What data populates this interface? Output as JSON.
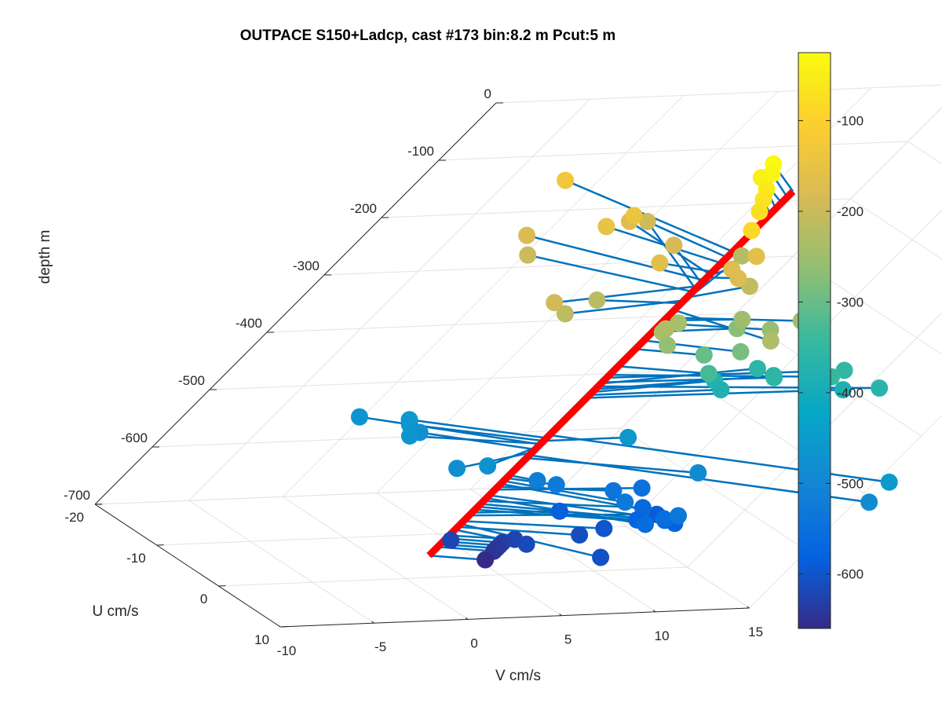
{
  "chart_data": {
    "type": "scatter",
    "title": "OUTPACE S150+Ladcp, cast #173 bin:8.2 m  Pcut:5 m",
    "xlabel": "V cm/s",
    "ylabel": "U cm/s",
    "zlabel": "depth m",
    "xlim": [
      -10,
      15
    ],
    "ylim": [
      -20,
      10
    ],
    "zlim": [
      -700,
      0
    ],
    "x_ticks": [
      "-10",
      "-5",
      "0",
      "5",
      "10",
      "15"
    ],
    "y_ticks": [
      "-20",
      "-10",
      "0",
      "10"
    ],
    "z_ticks": [
      "0",
      "-100",
      "-200",
      "-300",
      "-400",
      "-500",
      "-600",
      "-700"
    ],
    "colorbar": {
      "ticks": [
        "-100",
        "-200",
        "-300",
        "-400",
        "-500",
        "-600"
      ],
      "range": [
        -660,
        -25
      ]
    },
    "grid": true,
    "reference_profile_color": "#ff0000",
    "vector_color": "#0072bd",
    "points": [
      {
        "depth": -25,
        "v": 1.1,
        "u": -6.5
      },
      {
        "depth": -35,
        "v": 1.0,
        "u": -5.5
      },
      {
        "depth": -45,
        "v": 0.9,
        "u": -6.0
      },
      {
        "depth": -55,
        "v": 1.0,
        "u": -4.5
      },
      {
        "depth": -65,
        "v": 0.8,
        "u": -3.5
      },
      {
        "depth": -75,
        "v": 0.4,
        "u": -2.0
      },
      {
        "depth": -85,
        "v": -0.7,
        "u": 1.0
      },
      {
        "depth": -130,
        "v": -3.0,
        "u": -18.0
      },
      {
        "depth": -140,
        "v": -1.5,
        "u": -10.5
      },
      {
        "depth": -150,
        "v": -3.0,
        "u": -9.5
      },
      {
        "depth": -160,
        "v": 3.0,
        "u": -2.5
      },
      {
        "depth": -165,
        "v": -2.0,
        "u": -2.5
      },
      {
        "depth": -170,
        "v": 1.5,
        "u": -1.0
      },
      {
        "depth": -170,
        "v": 0.0,
        "u": -13.0
      },
      {
        "depth": -175,
        "v": 1.5,
        "u": 0.5
      },
      {
        "depth": -180,
        "v": -5.5,
        "u": -12.0
      },
      {
        "depth": -185,
        "v": 1.5,
        "u": -9.0
      },
      {
        "depth": -190,
        "v": -8.5,
        "u": 2.5
      },
      {
        "depth": -195,
        "v": 2.7,
        "u": -16.0
      },
      {
        "depth": -200,
        "v": -5.5,
        "u": -10.0
      },
      {
        "depth": -210,
        "v": 4.0,
        "u": -2.0
      },
      {
        "depth": -215,
        "v": -7.0,
        "u": 2.0
      },
      {
        "depth": -220,
        "v": -4.0,
        "u": -1.5
      },
      {
        "depth": -225,
        "v": 7.0,
        "u": -11.0
      },
      {
        "depth": -230,
        "v": -2.0,
        "u": 4.5
      },
      {
        "depth": -232,
        "v": 2.5,
        "u": 8.0
      },
      {
        "depth": -236,
        "v": -2.0,
        "u": 4.5
      },
      {
        "depth": -240,
        "v": -0.2,
        "u": 2.0
      },
      {
        "depth": -245,
        "v": 6.5,
        "u": 2.0
      },
      {
        "depth": -250,
        "v": 4.0,
        "u": 0.5
      },
      {
        "depth": -255,
        "v": 5.0,
        "u": 2.5
      },
      {
        "depth": -260,
        "v": -1.0,
        "u": 4.5
      },
      {
        "depth": -270,
        "v": 4.5,
        "u": 0.0
      },
      {
        "depth": -285,
        "v": 4.0,
        "u": 3.5
      },
      {
        "depth": -300,
        "v": 3.0,
        "u": 2.0
      },
      {
        "depth": -330,
        "v": 4.0,
        "u": 2.5
      },
      {
        "depth": -345,
        "v": 11.0,
        "u": 2.5
      },
      {
        "depth": -350,
        "v": 12.5,
        "u": 0.5
      },
      {
        "depth": -358,
        "v": 9.0,
        "u": 0.5
      },
      {
        "depth": -360,
        "v": 9.0,
        "u": -2.0
      },
      {
        "depth": -365,
        "v": 14.0,
        "u": 3.0
      },
      {
        "depth": -370,
        "v": 10.0,
        "u": -1.5
      },
      {
        "depth": -375,
        "v": 7.0,
        "u": -1.5
      },
      {
        "depth": -380,
        "v": 7.0,
        "u": 0.0
      },
      {
        "depth": -385,
        "v": 13.5,
        "u": 0.5
      },
      {
        "depth": -450,
        "v": 13.5,
        "u": 14.0
      },
      {
        "depth": -455,
        "v": -5.5,
        "u": -5.5
      },
      {
        "depth": -460,
        "v": 4.5,
        "u": 0.0
      },
      {
        "depth": -460,
        "v": -5.5,
        "u": -5.0
      },
      {
        "depth": -465,
        "v": -6.0,
        "u": -3.0
      },
      {
        "depth": -466,
        "v": -7.0,
        "u": -8.0
      },
      {
        "depth": -470,
        "v": -4.0,
        "u": 4.0
      },
      {
        "depth": -475,
        "v": -4.5,
        "u": -5.0
      },
      {
        "depth": -480,
        "v": -5.0,
        "u": 3.0
      },
      {
        "depth": -485,
        "v": 13.5,
        "u": 14.0
      },
      {
        "depth": -490,
        "v": 7.5,
        "u": 5.0
      },
      {
        "depth": -520,
        "v": 1.0,
        "u": 1.5
      },
      {
        "depth": -525,
        "v": 2.0,
        "u": 2.0
      },
      {
        "depth": -530,
        "v": 4.5,
        "u": 6.0
      },
      {
        "depth": -535,
        "v": 6.5,
        "u": 9.0
      },
      {
        "depth": -540,
        "v": 5.5,
        "u": 2.0
      },
      {
        "depth": -545,
        "v": 7.5,
        "u": 1.0
      },
      {
        "depth": -555,
        "v": 7.0,
        "u": 7.0
      },
      {
        "depth": -560,
        "v": 6.0,
        "u": 7.5
      },
      {
        "depth": -565,
        "v": 7.5,
        "u": 3.0
      },
      {
        "depth": -570,
        "v": 8.0,
        "u": 5.5
      },
      {
        "depth": -575,
        "v": 7.0,
        "u": 4.5
      },
      {
        "depth": -580,
        "v": 9.0,
        "u": 5.0
      },
      {
        "depth": -585,
        "v": 4.5,
        "u": 0.5
      },
      {
        "depth": -590,
        "v": 9.5,
        "u": 1.5
      },
      {
        "depth": -600,
        "v": 6.5,
        "u": 3.0
      },
      {
        "depth": -605,
        "v": 4.5,
        "u": 9.0
      },
      {
        "depth": -610,
        "v": 5.5,
        "u": 3.0
      },
      {
        "depth": -615,
        "v": 2.5,
        "u": 4.0
      },
      {
        "depth": -622,
        "v": -0.5,
        "u": 1.5
      },
      {
        "depth": -625,
        "v": 3.0,
        "u": 1.5
      },
      {
        "depth": -630,
        "v": 2.5,
        "u": 1.5
      },
      {
        "depth": -635,
        "v": 2.5,
        "u": 1.5
      },
      {
        "depth": -640,
        "v": 2.5,
        "u": 1.5
      },
      {
        "depth": -645,
        "v": 2.5,
        "u": 1.5
      },
      {
        "depth": -660,
        "v": 2.5,
        "u": 1.5
      }
    ]
  }
}
